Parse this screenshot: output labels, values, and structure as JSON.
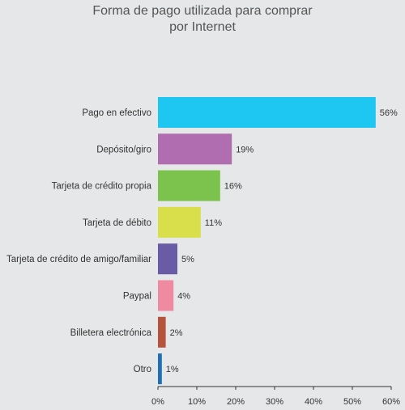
{
  "chart_data": {
    "type": "bar",
    "orientation": "horizontal",
    "title_lines": [
      "Forma de pago utilizada para comprar",
      "por Internet"
    ],
    "categories": [
      "Pago en efectivo",
      "Depósito/giro",
      "Tarjeta de crédito propia",
      "Tarjeta de débito",
      "Tarjeta de crédito de amigo/familiar",
      "Paypal",
      "Billetera electrónica",
      "Otro"
    ],
    "values": [
      56,
      19,
      16,
      11,
      5,
      4,
      2,
      1
    ],
    "value_labels": [
      "56%",
      "19%",
      "16%",
      "11%",
      "5%",
      "4%",
      "2%",
      "1%"
    ],
    "colors": [
      "#1ec6f2",
      "#b06db0",
      "#7cc34e",
      "#d8df4a",
      "#6a5ba6",
      "#f08aa0",
      "#b5533c",
      "#1f6fb2"
    ],
    "xlim": [
      0,
      60
    ],
    "xticks": [
      0,
      10,
      20,
      30,
      40,
      50,
      60
    ],
    "xtick_labels": [
      "0%",
      "10%",
      "20%",
      "30%",
      "40%",
      "50%",
      "60%"
    ],
    "grid": false,
    "legend": "none"
  }
}
